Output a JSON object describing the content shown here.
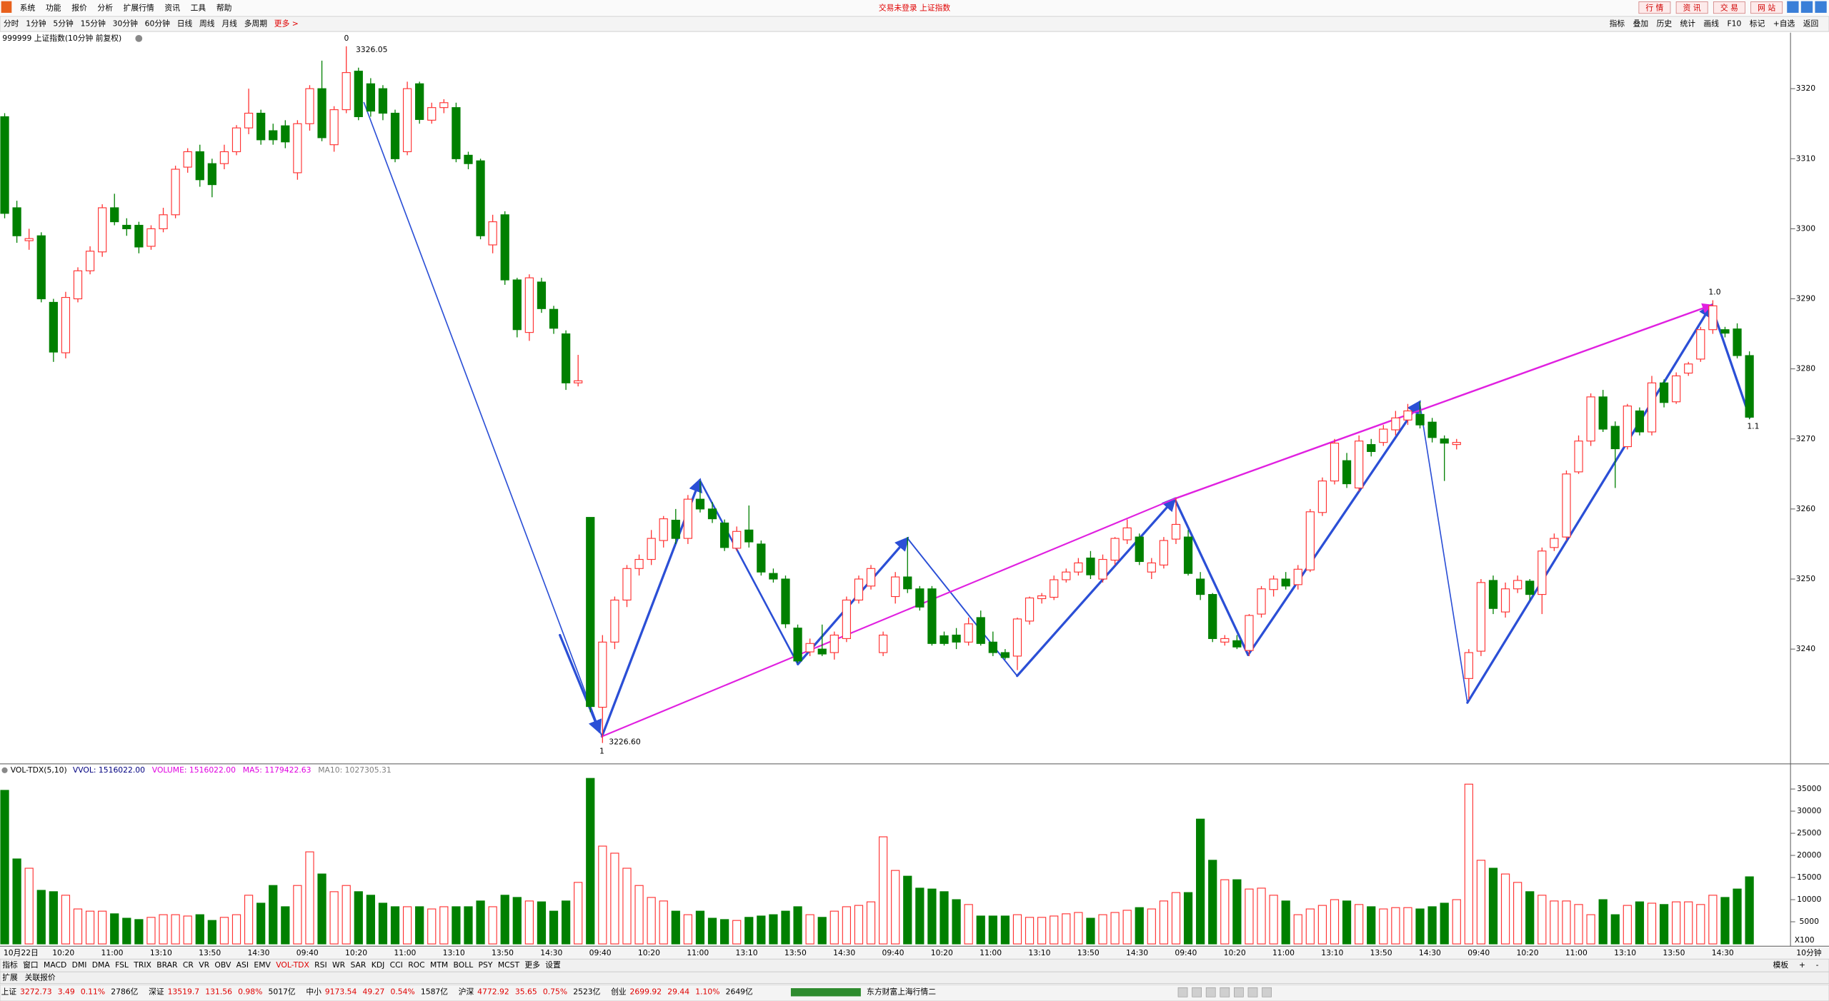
{
  "menu": [
    "系统",
    "功能",
    "报价",
    "分析",
    "扩展行情",
    "资讯",
    "工具",
    "帮助"
  ],
  "title_center": "交易未登录 上证指数",
  "top_buttons": [
    "行 情",
    "资 讯",
    "交 易",
    "网 站"
  ],
  "periods": [
    "分时",
    "1分钟",
    "5分钟",
    "15分钟",
    "30分钟",
    "60分钟",
    "日线",
    "周线",
    "月线",
    "多周期",
    "更多 >"
  ],
  "tools": [
    "指标",
    "叠加",
    "历史",
    "统计",
    "画线",
    "F10",
    "标记",
    "+自选",
    "返回"
  ],
  "chart_title": "999999 上证指数(10分钟 前复权)",
  "chart_data": [
    {
      "type": "candlestick",
      "up_color": "#ff3232",
      "down_color": "#008000",
      "ylim": [
        3223.7,
        3328.0
      ],
      "yticks": [
        3240,
        3250,
        3260,
        3270,
        3280,
        3290,
        3300,
        3310,
        3320
      ],
      "annotations": [
        "0",
        "3326.05",
        "1",
        "3226.60",
        "1.0",
        "1.1"
      ],
      "open": [
        3316,
        3303,
        3298.3,
        3299,
        3289.5,
        3282.3,
        3290,
        3294,
        3296.7,
        3303,
        3300.5,
        3300.5,
        3297.5,
        3300,
        3302,
        3308.8,
        3311,
        3309.3,
        3309.3,
        3311,
        3314.4,
        3316.5,
        3314,
        3314.7,
        3308,
        3315,
        3320,
        3312,
        3317,
        3322.5,
        3320.7,
        3320,
        3316.5,
        3311,
        3320.7,
        3315.5,
        3317.3,
        3317.3,
        3310.5,
        3309.7,
        3297.7,
        3302,
        3292.7,
        3285.2,
        3292.4,
        3288.5,
        3285,
        3278,
        3258.8,
        3231.7,
        3241,
        3247,
        3251.5,
        3252.8,
        3255.5,
        3258.4,
        3255.8,
        3261.4,
        3260,
        3258,
        3254.4,
        3257,
        3255,
        3250.8,
        3250,
        3243,
        3239.6,
        3240,
        3239.5,
        3241.5,
        3247,
        3249,
        3239.5,
        3247.5,
        3250.3,
        3248.6,
        3248.6,
        3241.9,
        3242,
        3241,
        3244.5,
        3241,
        3239.5,
        3239,
        3244,
        3247.2,
        3247.4,
        3249.9,
        3251,
        3253,
        3250,
        3252.7,
        3255.6,
        3256,
        3251,
        3252,
        3255.7,
        3256,
        3250,
        3247.8,
        3241,
        3241.2,
        3239.8,
        3245,
        3248.5,
        3250,
        3249.2,
        3251.3,
        3259.5,
        3264,
        3266.9,
        3263,
        3269.2,
        3269.5,
        3271.3,
        3272.7,
        3273.5,
        3272.4,
        3270,
        3269.2,
        3235.8,
        3239.7,
        3249.8,
        3245.3,
        3248.6,
        3249.7,
        3247.8,
        3254.5,
        3256,
        3265.3,
        3269.7,
        3276,
        3271.8,
        3268.9,
        3274,
        3271,
        3278,
        3275.3,
        3279.4,
        3281.4,
        3285.6,
        3285.6,
        3285.7,
        3281.9
      ],
      "high": [
        3316.5,
        3304,
        3300,
        3299.5,
        3290,
        3291,
        3294.5,
        3297.5,
        3303.5,
        3305,
        3301.5,
        3301,
        3300.5,
        3303,
        3309,
        3311.5,
        3312,
        3310,
        3312,
        3314.8,
        3320,
        3317,
        3315,
        3315.5,
        3315.5,
        3320.5,
        3324,
        3317.5,
        3326.05,
        3323,
        3321.5,
        3320.5,
        3317,
        3321,
        3321,
        3318,
        3318.5,
        3318,
        3311,
        3310,
        3302,
        3302.5,
        3293,
        3293.5,
        3293,
        3289,
        3285.5,
        3282,
        3258.8,
        3242,
        3247.5,
        3252,
        3253.5,
        3257,
        3259,
        3260,
        3262,
        3264,
        3261,
        3258.5,
        3257.5,
        3260.5,
        3255.5,
        3251.5,
        3250.5,
        3243.5,
        3241.5,
        3243.5,
        3242.5,
        3247.5,
        3250.5,
        3252,
        3242.5,
        3251,
        3256,
        3249,
        3249,
        3242.5,
        3243,
        3244.5,
        3245.5,
        3242.5,
        3240,
        3244.5,
        3247.5,
        3248,
        3250.5,
        3251.5,
        3253,
        3254,
        3253.5,
        3256,
        3258.5,
        3256.5,
        3253,
        3256,
        3261.6,
        3257,
        3251,
        3248,
        3242,
        3242,
        3245,
        3249,
        3250.5,
        3251,
        3252,
        3260,
        3264.5,
        3270,
        3268,
        3270.5,
        3270,
        3272,
        3274,
        3275,
        3275.3,
        3273,
        3270.5,
        3270,
        3240,
        3250,
        3250.5,
        3249.5,
        3250.5,
        3250,
        3254.5,
        3256.5,
        3265.5,
        3270.5,
        3276.5,
        3277,
        3272.5,
        3275,
        3274.5,
        3279,
        3278.5,
        3279.5,
        3281,
        3286,
        3289.8,
        3286,
        3286.5,
        3282.5
      ],
      "low": [
        3301.5,
        3298,
        3297,
        3289.5,
        3281,
        3281.5,
        3289.5,
        3293.5,
        3296,
        3300.5,
        3299,
        3296.5,
        3297,
        3299.5,
        3301.5,
        3308,
        3306,
        3304.5,
        3308.5,
        3310.5,
        3313.5,
        3312,
        3312,
        3311.5,
        3307,
        3314,
        3312.5,
        3311,
        3316.5,
        3315.5,
        3316,
        3315.5,
        3309.5,
        3310.5,
        3315,
        3315,
        3316.5,
        3309.5,
        3308.5,
        3298.5,
        3296.5,
        3292,
        3284.5,
        3284,
        3288,
        3285,
        3277,
        3277.5,
        3231,
        3226.6,
        3240,
        3246,
        3250.5,
        3252,
        3254.5,
        3255,
        3255,
        3259.5,
        3258,
        3254,
        3254,
        3254.5,
        3250.5,
        3249.5,
        3243,
        3238,
        3239,
        3239,
        3238.5,
        3241,
        3246.5,
        3248.5,
        3239,
        3246.5,
        3248,
        3245.5,
        3240.5,
        3240.5,
        3240,
        3240.5,
        3240.5,
        3239,
        3238.5,
        3237,
        3243.5,
        3246.5,
        3247,
        3249.5,
        3250.5,
        3250,
        3249.5,
        3252,
        3255,
        3252,
        3250,
        3251.5,
        3255,
        3250.5,
        3247,
        3241,
        3240.5,
        3240,
        3239,
        3244.5,
        3247.5,
        3248.5,
        3248.5,
        3251,
        3259,
        3263.5,
        3263,
        3262.5,
        3267.5,
        3269,
        3270.5,
        3272,
        3271.5,
        3269.5,
        3264,
        3268.5,
        3232.8,
        3239,
        3245,
        3244.5,
        3248,
        3247,
        3245,
        3254,
        3255.5,
        3265,
        3269,
        3271,
        3263,
        3268.5,
        3270.5,
        3270.5,
        3274.5,
        3275,
        3279,
        3281,
        3285,
        3284.5,
        3281.5,
        3272.8
      ],
      "close": [
        3302.2,
        3299,
        3298.6,
        3290,
        3282.4,
        3290.2,
        3294,
        3296.8,
        3303,
        3301,
        3300,
        3297.4,
        3300,
        3302,
        3308.5,
        3311,
        3307,
        3306.3,
        3311,
        3314.4,
        3316.5,
        3312.7,
        3312.7,
        3312.4,
        3315,
        3320,
        3313,
        3317,
        3322.3,
        3316,
        3316.8,
        3316.5,
        3310,
        3320,
        3315.6,
        3317.3,
        3318,
        3310,
        3309.3,
        3299,
        3301,
        3292.7,
        3285.6,
        3293,
        3288.6,
        3285.8,
        3278,
        3278.3,
        3231.8,
        3241,
        3247,
        3251.5,
        3252.8,
        3255.8,
        3258.6,
        3255.8,
        3261.4,
        3260,
        3258.6,
        3254.5,
        3256.8,
        3255.3,
        3251,
        3250,
        3243.6,
        3238.3,
        3240.8,
        3239.3,
        3242,
        3247,
        3250,
        3251.5,
        3242,
        3250.3,
        3248.6,
        3246,
        3240.8,
        3240.8,
        3241,
        3243.6,
        3240.8,
        3239.5,
        3238.8,
        3244.3,
        3247.3,
        3247.6,
        3249.9,
        3251,
        3252.3,
        3250.6,
        3252.8,
        3255.8,
        3257.3,
        3252.5,
        3252.3,
        3255.5,
        3257.8,
        3250.8,
        3247.8,
        3241.5,
        3241.5,
        3240.3,
        3244.8,
        3248.6,
        3250,
        3249,
        3251.4,
        3259.6,
        3264,
        3269.4,
        3263.6,
        3269.7,
        3268.2,
        3271.4,
        3273,
        3274,
        3272,
        3270.2,
        3269.4,
        3269.5,
        3239.5,
        3249.5,
        3245.8,
        3248.6,
        3249.8,
        3247.8,
        3254,
        3255.8,
        3265,
        3269.7,
        3276,
        3271.4,
        3268.6,
        3274.7,
        3271,
        3278,
        3275.2,
        3279,
        3280.7,
        3285.6,
        3289,
        3285.1,
        3281.9,
        3273.1
      ]
    },
    {
      "type": "bar",
      "title": "VOL-TDX(5,10)",
      "legend": [
        {
          "label": "VVOL: 1516022.00",
          "color": "#000080"
        },
        {
          "label": "VOLUME: 1516022.00",
          "color": "#e000e0"
        },
        {
          "label": "MA5: 1179422.63",
          "color": "#e000e0"
        },
        {
          "label": "MA10: 1027305.31",
          "color": "#808080"
        }
      ],
      "ylim": [
        0,
        39500
      ],
      "yticks": [
        5000,
        10000,
        15000,
        20000,
        25000,
        30000,
        35000
      ],
      "unit_label": "X100",
      "period_label": "10分钟",
      "categories": [
        "10月22日",
        null,
        null,
        null,
        "10:20",
        null,
        null,
        null,
        "11:00",
        null,
        null,
        null,
        "13:10",
        null,
        null,
        null,
        "13:50",
        null,
        null,
        null,
        "14:30",
        null,
        null,
        null,
        "09:40",
        null,
        null,
        null,
        "10:20",
        null,
        null,
        null,
        "11:00",
        null,
        null,
        null,
        "13:10",
        null,
        null,
        null,
        "13:50",
        null,
        null,
        null,
        "14:30",
        null,
        null,
        null,
        "09:40",
        null,
        null,
        null,
        "10:20",
        null,
        null,
        null,
        "11:00",
        null,
        null,
        null,
        "13:10",
        null,
        null,
        null,
        "13:50",
        null,
        null,
        null,
        "14:30",
        null,
        null,
        null,
        "09:40",
        null,
        null,
        null,
        "10:20",
        null,
        null,
        null,
        "11:00",
        null,
        null,
        null,
        "13:10",
        null,
        null,
        null,
        "13:50",
        null,
        null,
        null,
        "14:30",
        null,
        null,
        null,
        "09:40",
        null,
        null,
        null,
        "10:20",
        null,
        null,
        null,
        "11:00",
        null,
        null,
        null,
        "13:10",
        null,
        null,
        null,
        "13:50",
        null,
        null,
        null,
        "14:30",
        null,
        null,
        null,
        "09:40",
        null,
        null,
        null,
        "10:20",
        null,
        null,
        null,
        "11:00",
        null,
        null,
        null,
        "13:10",
        null,
        null,
        null,
        "13:50",
        null,
        null,
        null,
        "14:30",
        null,
        null,
        null
      ],
      "values": [
        34700,
        19200,
        17100,
        12100,
        11800,
        11000,
        7900,
        7400,
        7400,
        6800,
        5800,
        5500,
        6000,
        6600,
        6600,
        6300,
        6600,
        5300,
        6000,
        6600,
        11000,
        9200,
        13200,
        8400,
        13200,
        20800,
        15800,
        11800,
        13200,
        11800,
        11000,
        9200,
        8400,
        8400,
        8400,
        7900,
        8400,
        8400,
        8400,
        9700,
        8400,
        11000,
        10500,
        9700,
        9500,
        7400,
        9700,
        13900,
        37400,
        22100,
        20500,
        17100,
        13200,
        10500,
        9700,
        7400,
        6600,
        7400,
        5800,
        5500,
        5300,
        6000,
        6300,
        6600,
        7400,
        8400,
        6600,
        6000,
        7400,
        8400,
        8700,
        9500,
        24200,
        16600,
        15300,
        12600,
        12400,
        11800,
        10000,
        8900,
        6300,
        6300,
        6300,
        6600,
        6000,
        6000,
        6300,
        6800,
        7100,
        5800,
        6600,
        7100,
        7600,
        8200,
        7900,
        9700,
        11600,
        11600,
        28200,
        18900,
        14500,
        14500,
        12400,
        12600,
        11000,
        9700,
        6600,
        7900,
        8700,
        10000,
        9700,
        8900,
        8400,
        7900,
        8200,
        8200,
        7900,
        8400,
        9200,
        10000,
        36100,
        18900,
        17100,
        15800,
        13900,
        11800,
        11000,
        9700,
        9700,
        8900,
        6600,
        10000,
        6600,
        8700,
        9500,
        9200,
        8900,
        9500,
        9500,
        8900,
        11000,
        10500,
        12400,
        15160
      ]
    }
  ],
  "indicator_tabs": [
    "指标",
    "窗口",
    "MACD",
    "DMI",
    "DMA",
    "FSL",
    "TRIX",
    "BRAR",
    "CR",
    "VR",
    "OBV",
    "ASI",
    "EMV",
    "VOL-TDX",
    "RSI",
    "WR",
    "SAR",
    "KDJ",
    "CCI",
    "ROC",
    "MTM",
    "BOLL",
    "PSY",
    "MCST",
    "更多",
    "设置"
  ],
  "active_tab": "VOL-TDX",
  "right_tabs": [
    "模板",
    "+",
    "-"
  ],
  "sub_tabs": [
    "扩展",
    "关联报价"
  ],
  "status": [
    {
      "name": "上证",
      "values": [
        "3272.73",
        "3.49",
        "0.11%",
        "2786亿"
      ]
    },
    {
      "name": "深证",
      "values": [
        "13519.7",
        "131.56",
        "0.98%",
        "5017亿"
      ]
    },
    {
      "name": "中小",
      "values": [
        "9173.54",
        "49.27",
        "0.54%",
        "1587亿"
      ]
    },
    {
      "name": "沪深",
      "values": [
        "4772.92",
        "35.65",
        "0.75%",
        "2523亿"
      ]
    },
    {
      "name": "创业",
      "values": [
        "2699.92",
        "29.44",
        "1.10%",
        "2649亿"
      ]
    }
  ],
  "server": "东方财富上海行情二"
}
